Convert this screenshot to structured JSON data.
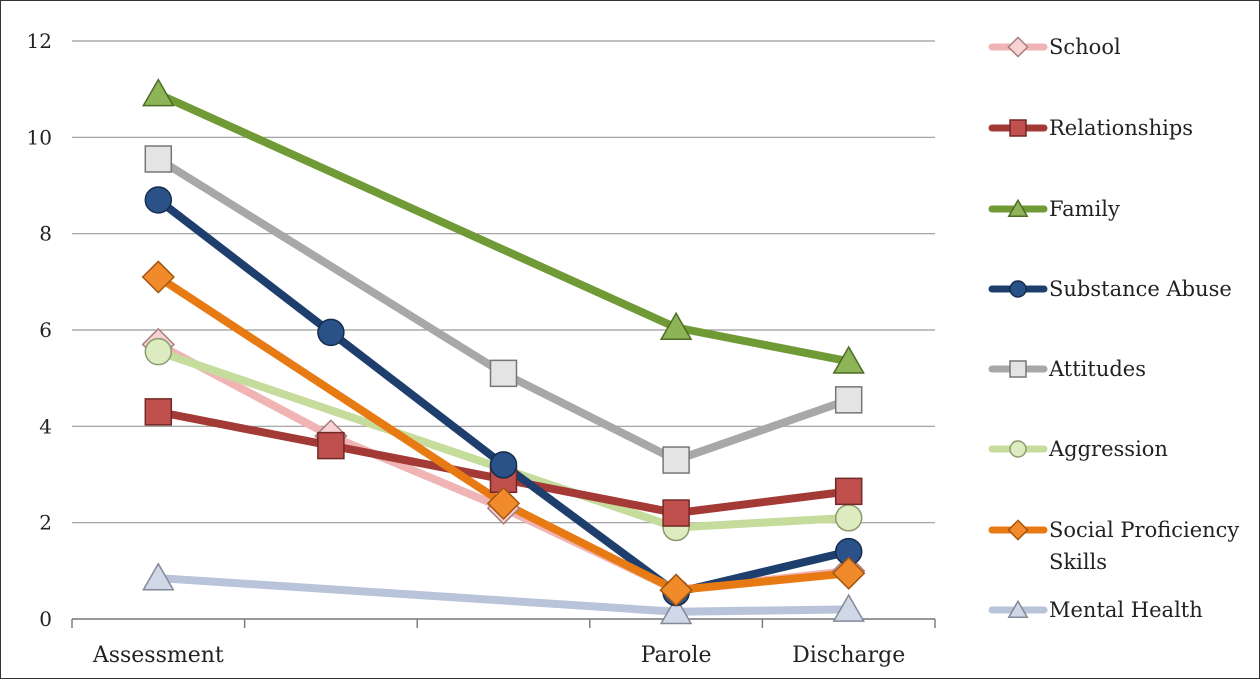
{
  "chart_data": {
    "type": "line",
    "categories": [
      "Assessment",
      "",
      "",
      "Parole",
      "Discharge"
    ],
    "ylim": [
      0,
      12
    ],
    "yticks": [
      0,
      2,
      4,
      6,
      8,
      10,
      12
    ],
    "grid": true,
    "legend_position": "right",
    "series": [
      {
        "name": "Mental Health",
        "color": "#b9c3d9",
        "marker": "triangle",
        "values": [
          0.85,
          null,
          null,
          0.15,
          0.2
        ]
      },
      {
        "name": "School",
        "color": "#f0b4b4",
        "marker": "diamond",
        "values": [
          5.7,
          3.8,
          2.3,
          0.6,
          1.0
        ]
      },
      {
        "name": "Aggression",
        "color": "#c6dc9c",
        "marker": "circle",
        "values": [
          5.55,
          null,
          null,
          1.9,
          2.1
        ]
      },
      {
        "name": "Relationships",
        "color": "#a33a36",
        "marker": "square",
        "values": [
          4.3,
          3.6,
          2.9,
          2.2,
          2.65
        ]
      },
      {
        "name": "Attitudes",
        "color": "#a8a8a8",
        "marker": "square",
        "values": [
          9.55,
          null,
          5.1,
          3.3,
          4.55
        ]
      },
      {
        "name": "Substance Abuse",
        "color": "#1e3f6e",
        "marker": "circle",
        "values": [
          8.7,
          5.95,
          3.2,
          0.55,
          1.4
        ]
      },
      {
        "name": "Social Proficiency Skills",
        "color": "#e87a14",
        "marker": "diamond",
        "values": [
          7.1,
          null,
          2.4,
          0.6,
          0.95
        ]
      },
      {
        "name": "Family",
        "color": "#6f9a35",
        "marker": "triangle",
        "values": [
          10.9,
          null,
          null,
          6.05,
          5.35
        ]
      }
    ],
    "legend": [
      {
        "label": "School",
        "color": "#f0b4b4",
        "marker": "diamond",
        "fill": "#f7d3d3"
      },
      {
        "label": "Relationships",
        "color": "#a33a36",
        "marker": "square",
        "fill": "#c0504d"
      },
      {
        "label": "Family",
        "color": "#6f9a35",
        "marker": "triangle",
        "fill": "#8db456"
      },
      {
        "label": "Substance Abuse",
        "color": "#1e3f6e",
        "marker": "circle",
        "fill": "#2a5288"
      },
      {
        "label": "Attitudes",
        "color": "#a8a8a8",
        "marker": "square",
        "fill": "#e4e4e4"
      },
      {
        "label": "Aggression",
        "color": "#c6dc9c",
        "marker": "circle",
        "fill": "#dcebc0"
      },
      {
        "label": "Social Proficiency Skills",
        "color": "#e87a14",
        "marker": "diamond",
        "fill": "#f08a2a"
      },
      {
        "label": "Mental Health",
        "color": "#b9c3d9",
        "marker": "triangle",
        "fill": "#d0d8e8"
      }
    ]
  }
}
